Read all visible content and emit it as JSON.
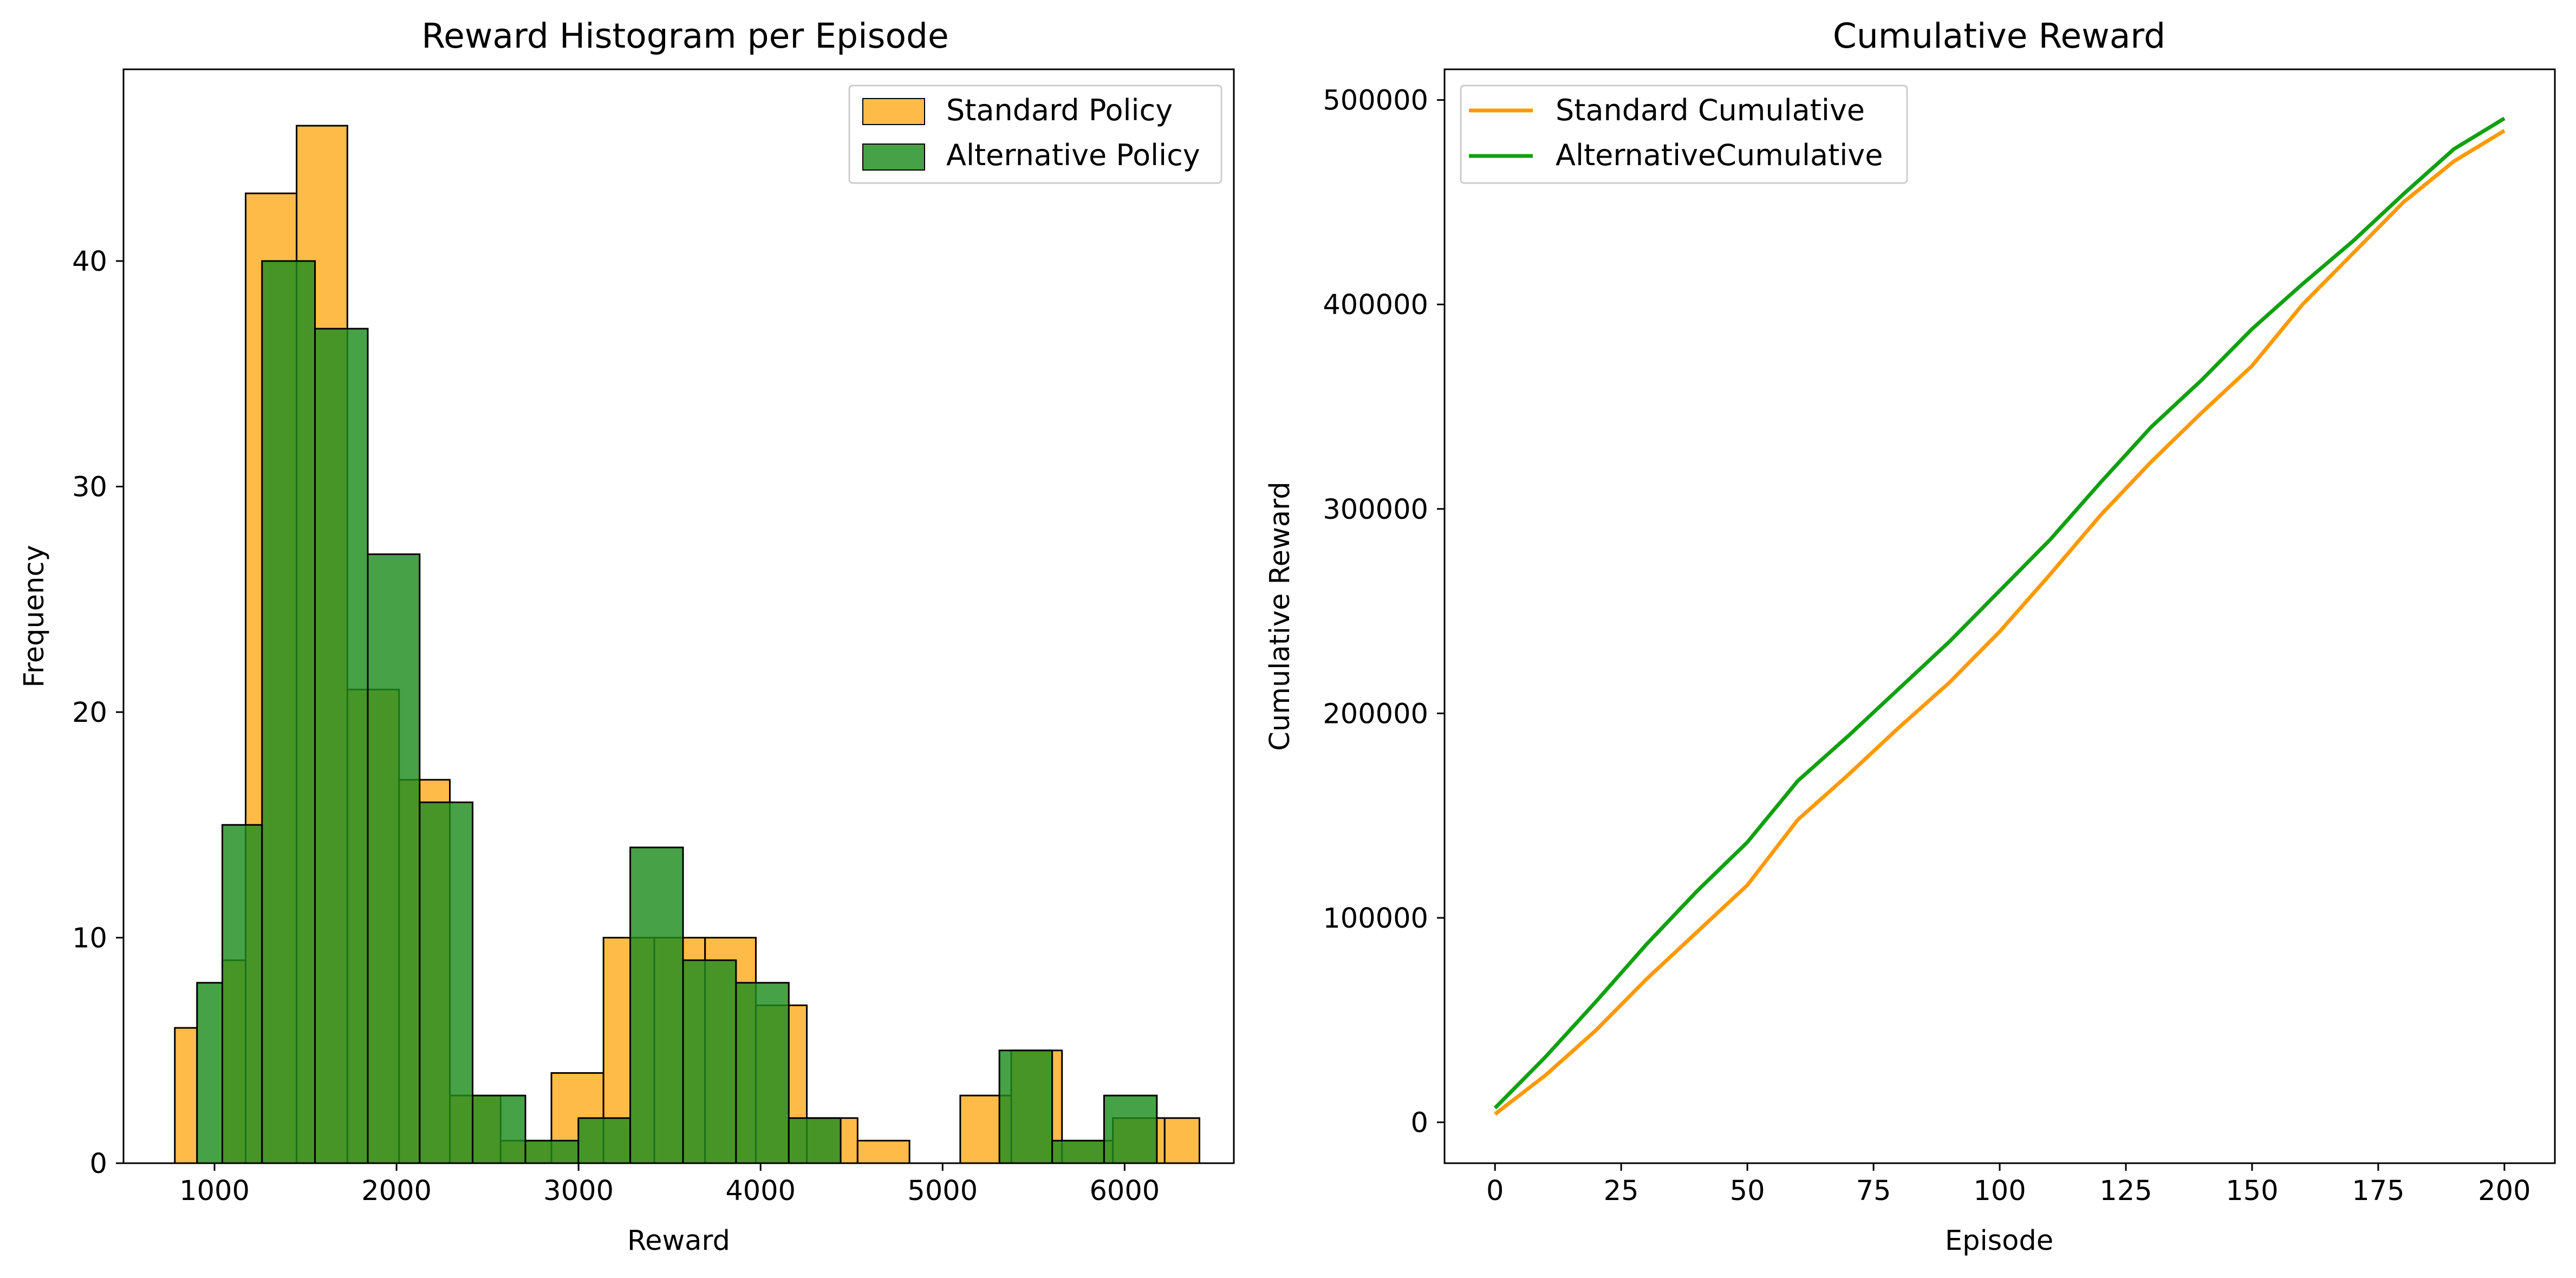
{
  "colors": {
    "standard": "#FFB433",
    "alternative": "#1E8C1E",
    "standard_line": "#FF9900",
    "alternative_line": "#10A010",
    "overlap": "#4F8A0C"
  },
  "chart_data": [
    {
      "type": "bar",
      "subtype": "histogram",
      "title": "Reward Histogram per Episode",
      "xlabel": "Reward",
      "ylabel": "Frequency",
      "xlim": [
        500,
        6600
      ],
      "ylim": [
        0,
        48.5
      ],
      "xticks": [
        1000,
        2000,
        3000,
        4000,
        5000,
        6000
      ],
      "yticks": [
        0,
        10,
        20,
        30,
        40
      ],
      "legend": "top-right",
      "grid": false,
      "series": [
        {
          "name": "Standard Policy",
          "color": "#FFB433",
          "bins": [
            [
              782,
              904,
              6
            ],
            [
              1043,
              1171,
              9
            ],
            [
              1171,
              1451,
              43
            ],
            [
              1451,
              1730,
              46
            ],
            [
              1730,
              2014,
              21
            ],
            [
              2014,
              2293,
              17
            ],
            [
              2293,
              2572,
              3
            ],
            [
              2572,
              2851,
              1
            ],
            [
              2851,
              3137,
              4
            ],
            [
              3137,
              3416,
              10
            ],
            [
              3416,
              3695,
              10
            ],
            [
              3695,
              3974,
              10
            ],
            [
              3974,
              4254,
              7
            ],
            [
              4254,
              4533,
              2
            ],
            [
              4533,
              4818,
              1
            ],
            [
              4818,
              5097,
              0
            ],
            [
              5097,
              5377,
              3
            ],
            [
              5377,
              5656,
              5
            ],
            [
              5656,
              5935,
              1
            ],
            [
              5935,
              6220,
              2
            ],
            [
              6220,
              6411,
              2
            ]
          ],
          "values_note": ""
        },
        {
          "name": "Alternative Policy",
          "color": "#1E8C1E",
          "bins": [
            [
              904,
              1043,
              8
            ],
            [
              1043,
              1261,
              15
            ],
            [
              1261,
              1552,
              40
            ],
            [
              1552,
              1842,
              37
            ],
            [
              1842,
              2127,
              27
            ],
            [
              2127,
              2418,
              16
            ],
            [
              2418,
              2708,
              3
            ],
            [
              2708,
              2999,
              1
            ],
            [
              2999,
              3284,
              2
            ],
            [
              3284,
              3574,
              14
            ],
            [
              3574,
              3865,
              9
            ],
            [
              3865,
              4155,
              8
            ],
            [
              4155,
              4440,
              2
            ],
            [
              4440,
              4731,
              0
            ],
            [
              4731,
              5021,
              0
            ],
            [
              5021,
              5312,
              0
            ],
            [
              5312,
              5602,
              5
            ],
            [
              5602,
              5887,
              1
            ],
            [
              5887,
              6177,
              3
            ]
          ]
        }
      ]
    },
    {
      "type": "line",
      "title": "Cumulative Reward",
      "xlabel": "Episode",
      "ylabel": "Cumulative Reward",
      "xlim": [
        -10,
        210
      ],
      "ylim": [
        -20000,
        515000
      ],
      "xticks": [
        0,
        25,
        50,
        75,
        100,
        125,
        150,
        175,
        200
      ],
      "yticks": [
        0,
        100000,
        200000,
        300000,
        400000,
        500000
      ],
      "legend": "top-left",
      "grid": false,
      "x": [
        0,
        10,
        20,
        30,
        40,
        50,
        60,
        70,
        80,
        90,
        100,
        110,
        120,
        130,
        140,
        150,
        160,
        170,
        180,
        190,
        200
      ],
      "series": [
        {
          "name": "Standard Cumulative",
          "color": "#FF9900",
          "values": [
            4000,
            23000,
            45000,
            70000,
            93000,
            116000,
            148000,
            170000,
            193000,
            215000,
            240000,
            268000,
            297000,
            323000,
            347000,
            370000,
            400000,
            425000,
            450000,
            470000,
            485000
          ]
        },
        {
          "name": "AlternativeCumulative",
          "color": "#10A010",
          "values": [
            7000,
            32000,
            59000,
            87000,
            113000,
            137000,
            167000,
            189000,
            212000,
            235000,
            260000,
            285000,
            313000,
            340000,
            363000,
            388000,
            410000,
            431000,
            454000,
            476000,
            491000
          ]
        }
      ]
    }
  ]
}
